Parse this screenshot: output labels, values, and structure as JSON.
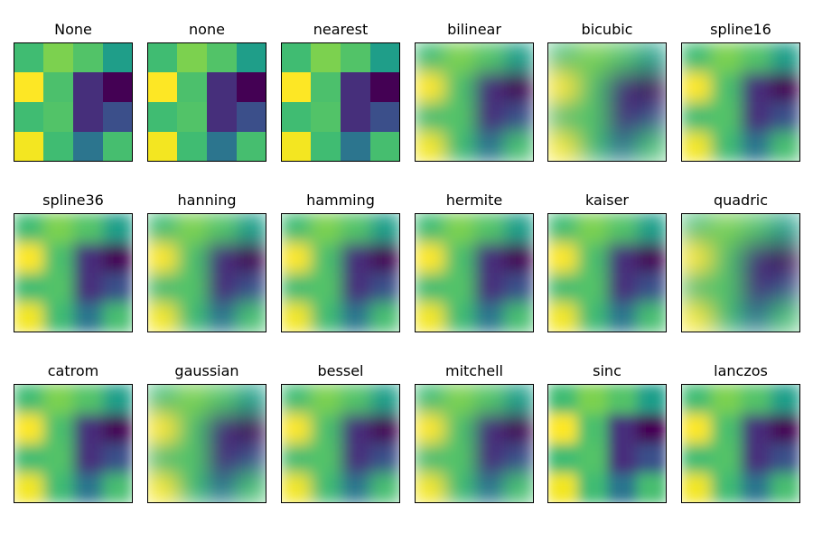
{
  "chart_data": {
    "type": "heatmap",
    "colormap": "viridis",
    "value_range": [
      0,
      1
    ],
    "grid": [
      [
        0.62,
        0.72,
        0.65,
        0.5
      ],
      [
        1.0,
        0.64,
        0.12,
        0.0
      ],
      [
        0.62,
        0.65,
        0.12,
        0.22
      ],
      [
        0.97,
        0.62,
        0.35,
        0.63
      ]
    ],
    "panels": [
      {
        "title": "None",
        "smooth": 0
      },
      {
        "title": "none",
        "smooth": 0
      },
      {
        "title": "nearest",
        "smooth": 0
      },
      {
        "title": "bilinear",
        "smooth": 10
      },
      {
        "title": "bicubic",
        "smooth": 13
      },
      {
        "title": "spline16",
        "smooth": 9
      },
      {
        "title": "spline36",
        "smooth": 8
      },
      {
        "title": "hanning",
        "smooth": 10
      },
      {
        "title": "hamming",
        "smooth": 9
      },
      {
        "title": "hermite",
        "smooth": 9
      },
      {
        "title": "kaiser",
        "smooth": 9
      },
      {
        "title": "quadric",
        "smooth": 13
      },
      {
        "title": "catrom",
        "smooth": 8
      },
      {
        "title": "gaussian",
        "smooth": 12
      },
      {
        "title": "bessel",
        "smooth": 9
      },
      {
        "title": "mitchell",
        "smooth": 10
      },
      {
        "title": "sinc",
        "smooth": 7
      },
      {
        "title": "lanczos",
        "smooth": 8
      }
    ]
  }
}
